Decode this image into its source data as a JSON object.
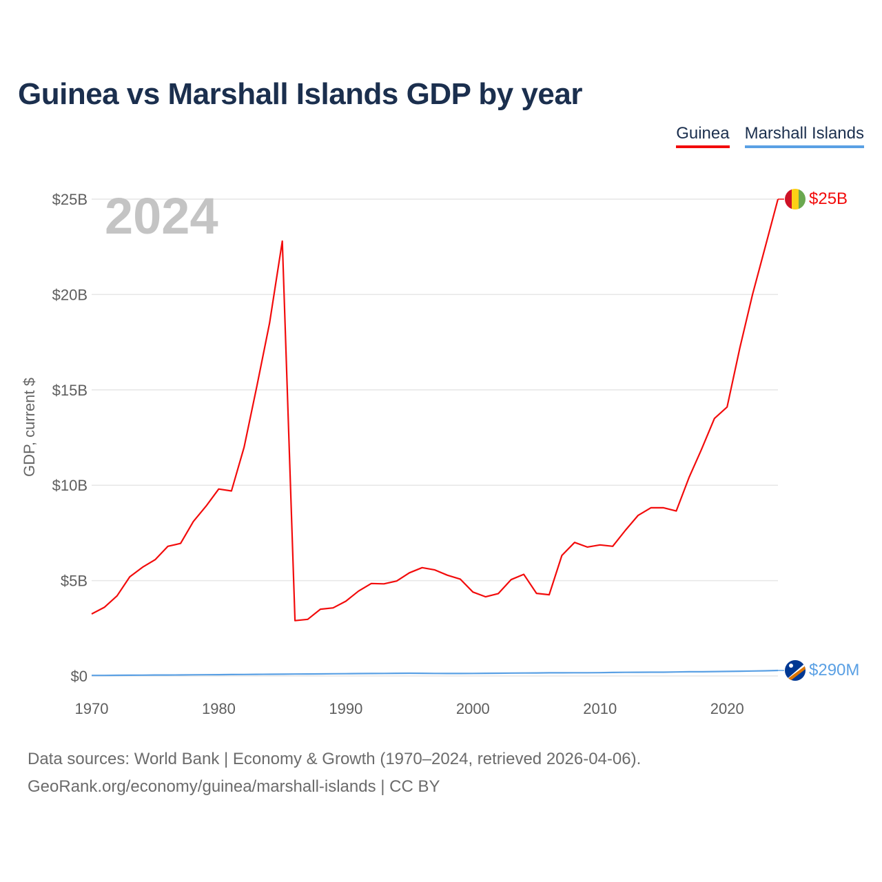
{
  "title": "Guinea vs Marshall Islands GDP by year",
  "legend": [
    {
      "name": "Guinea",
      "color": "#f20b0b"
    },
    {
      "name": "Marshall Islands",
      "color": "#5aa0e4"
    }
  ],
  "year_watermark": "2024",
  "footer": {
    "line1": "Data sources: World Bank | Economy & Growth (1970–2024, retrieved 2026-04-06).",
    "line2": "GeoRank.org/economy/guinea/marshall-islands | CC BY"
  },
  "chart_data": {
    "type": "line",
    "title": "Guinea vs Marshall Islands GDP by year",
    "xlabel": "",
    "ylabel": "GDP, current $",
    "xlim": [
      1970,
      2024
    ],
    "ylim": [
      0,
      25
    ],
    "y_unit": "billions USD",
    "x_ticks": [
      1970,
      1980,
      1990,
      2000,
      2010,
      2020
    ],
    "y_ticks": [
      {
        "value": 0,
        "label": "$0"
      },
      {
        "value": 5,
        "label": "$5B"
      },
      {
        "value": 10,
        "label": "$10B"
      },
      {
        "value": 15,
        "label": "$15B"
      },
      {
        "value": 20,
        "label": "$20B"
      },
      {
        "value": 25,
        "label": "$25B"
      }
    ],
    "grid": true,
    "legend_position": "top-right",
    "x": [
      1970,
      1971,
      1972,
      1973,
      1974,
      1975,
      1976,
      1977,
      1978,
      1979,
      1980,
      1981,
      1982,
      1983,
      1984,
      1985,
      1986,
      1987,
      1988,
      1989,
      1990,
      1991,
      1992,
      1993,
      1994,
      1995,
      1996,
      1997,
      1998,
      1999,
      2000,
      2001,
      2002,
      2003,
      2004,
      2005,
      2006,
      2007,
      2008,
      2009,
      2010,
      2011,
      2012,
      2013,
      2014,
      2015,
      2016,
      2017,
      2018,
      2019,
      2020,
      2021,
      2022,
      2023,
      2024
    ],
    "series": [
      {
        "name": "Guinea",
        "color": "#f20b0b",
        "end_label": "$25B",
        "values": [
          3.25,
          3.6,
          4.2,
          5.2,
          5.7,
          6.1,
          6.8,
          6.95,
          8.1,
          8.9,
          9.8,
          9.7,
          12.0,
          15.2,
          18.5,
          22.8,
          2.9,
          2.97,
          3.5,
          3.57,
          3.92,
          4.45,
          4.85,
          4.83,
          4.98,
          5.41,
          5.68,
          5.56,
          5.28,
          5.08,
          4.4,
          4.15,
          4.32,
          5.05,
          5.33,
          4.33,
          4.26,
          6.32,
          7.0,
          6.76,
          6.87,
          6.8,
          7.64,
          8.42,
          8.82,
          8.82,
          8.65,
          10.4,
          11.9,
          13.5,
          14.1,
          17.2,
          20.0,
          22.5,
          25.0
        ]
      },
      {
        "name": "Marshall Islands",
        "color": "#5aa0e4",
        "end_label": "$290M",
        "values": [
          0.03,
          0.03,
          0.035,
          0.04,
          0.045,
          0.05,
          0.05,
          0.055,
          0.06,
          0.065,
          0.07,
          0.075,
          0.08,
          0.085,
          0.09,
          0.095,
          0.1,
          0.105,
          0.11,
          0.115,
          0.12,
          0.125,
          0.13,
          0.135,
          0.14,
          0.145,
          0.14,
          0.135,
          0.13,
          0.13,
          0.135,
          0.14,
          0.145,
          0.15,
          0.155,
          0.16,
          0.165,
          0.165,
          0.17,
          0.17,
          0.175,
          0.185,
          0.19,
          0.195,
          0.2,
          0.2,
          0.21,
          0.22,
          0.22,
          0.23,
          0.24,
          0.25,
          0.26,
          0.27,
          0.29
        ]
      }
    ]
  }
}
